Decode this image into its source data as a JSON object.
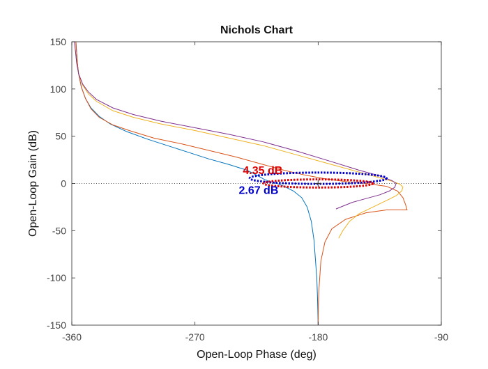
{
  "chart_data": {
    "type": "line",
    "title": "Nichols Chart",
    "xlabel": "Open-Loop Phase (deg)",
    "ylabel": "Open-Loop Gain (dB)",
    "xlim": [
      -360,
      -90
    ],
    "ylim": [
      -150,
      150
    ],
    "xticks": [
      -360,
      -270,
      -180,
      -90
    ],
    "yticks": [
      -150,
      -100,
      -50,
      0,
      50,
      100,
      150
    ],
    "grid": false,
    "zero_db_line": {
      "y": 0,
      "style": "dotted",
      "color": "#555555"
    },
    "critical_point": {
      "x": -180,
      "y": 0,
      "marker": "+"
    },
    "series": [
      {
        "color": "#0072BD",
        "points": [
          [
            -357,
            150
          ],
          [
            -356,
            128
          ],
          [
            -355,
            116
          ],
          [
            -353,
            102
          ],
          [
            -350,
            90
          ],
          [
            -346,
            80
          ],
          [
            -340,
            71
          ],
          [
            -332,
            63
          ],
          [
            -320,
            55
          ],
          [
            -305,
            47
          ],
          [
            -290,
            40
          ],
          [
            -275,
            33
          ],
          [
            -260,
            26
          ],
          [
            -245,
            20
          ],
          [
            -232,
            14
          ],
          [
            -224,
            8
          ],
          [
            -219,
            4
          ],
          [
            -215,
            2
          ],
          [
            -210,
            0
          ],
          [
            -205,
            -3
          ],
          [
            -198,
            -8
          ],
          [
            -192,
            -15
          ],
          [
            -188,
            -25
          ],
          [
            -185,
            -40
          ],
          [
            -183,
            -60
          ],
          [
            -182,
            -80
          ],
          [
            -181,
            -100
          ],
          [
            -180.5,
            -120
          ],
          [
            -180.2,
            -135
          ],
          [
            -180,
            -150
          ]
        ]
      },
      {
        "color": "#D95319",
        "points": [
          [
            -357,
            150
          ],
          [
            -356,
            128
          ],
          [
            -355,
            116
          ],
          [
            -353,
            102
          ],
          [
            -350,
            90
          ],
          [
            -346,
            79
          ],
          [
            -340,
            70
          ],
          [
            -330,
            62
          ],
          [
            -318,
            56
          ],
          [
            -300,
            48
          ],
          [
            -280,
            42
          ],
          [
            -260,
            35
          ],
          [
            -240,
            28
          ],
          [
            -220,
            20
          ],
          [
            -205,
            14
          ],
          [
            -190,
            9
          ],
          [
            -175,
            5
          ],
          [
            -160,
            2
          ],
          [
            -145,
            0
          ],
          [
            -130,
            -3
          ],
          [
            -122,
            -8
          ],
          [
            -118,
            -15
          ],
          [
            -116,
            -23
          ],
          [
            -115,
            -28
          ],
          [
            -120,
            -28
          ],
          [
            -130,
            -28
          ],
          [
            -145,
            -31
          ],
          [
            -160,
            -38
          ],
          [
            -170,
            -48
          ],
          [
            -175,
            -62
          ],
          [
            -178,
            -82
          ],
          [
            -179.3,
            -110
          ],
          [
            -179.8,
            -130
          ],
          [
            -180,
            -150
          ]
        ]
      },
      {
        "color": "#EDB120",
        "points": [
          [
            -358,
            150
          ],
          [
            -356.5,
            128
          ],
          [
            -355,
            116
          ],
          [
            -352,
            104
          ],
          [
            -348,
            95
          ],
          [
            -342,
            87
          ],
          [
            -330,
            77
          ],
          [
            -315,
            70
          ],
          [
            -295,
            63
          ],
          [
            -270,
            56
          ],
          [
            -245,
            48
          ],
          [
            -220,
            40
          ],
          [
            -195,
            30
          ],
          [
            -170,
            20
          ],
          [
            -150,
            12
          ],
          [
            -135,
            6
          ],
          [
            -125,
            2
          ],
          [
            -120,
            -1
          ],
          [
            -118,
            -4
          ],
          [
            -119,
            -8
          ],
          [
            -123,
            -13
          ],
          [
            -130,
            -18
          ],
          [
            -140,
            -25
          ],
          [
            -150,
            -32
          ],
          [
            -157,
            -40
          ],
          [
            -162,
            -50
          ],
          [
            -165,
            -58
          ]
        ]
      },
      {
        "color": "#7E2F8E",
        "points": [
          [
            -358,
            150
          ],
          [
            -356.5,
            128
          ],
          [
            -355,
            116
          ],
          [
            -352,
            105
          ],
          [
            -348,
            97
          ],
          [
            -342,
            89
          ],
          [
            -330,
            80
          ],
          [
            -315,
            73
          ],
          [
            -295,
            66
          ],
          [
            -270,
            59
          ],
          [
            -245,
            52
          ],
          [
            -220,
            44
          ],
          [
            -195,
            34
          ],
          [
            -170,
            23
          ],
          [
            -150,
            14
          ],
          [
            -135,
            8
          ],
          [
            -126,
            3
          ],
          [
            -123,
            0
          ],
          [
            -124,
            -4
          ],
          [
            -128,
            -8
          ],
          [
            -135,
            -12
          ],
          [
            -145,
            -16
          ],
          [
            -155,
            -20
          ],
          [
            -162,
            -24
          ],
          [
            -167,
            -27
          ]
        ]
      }
    ],
    "margin_ellipses": [
      {
        "color": "#0000CC",
        "center": [
          -180,
          5.5
        ],
        "x_radius": 50,
        "y_radius": 6
      },
      {
        "color": "#DD0000",
        "center": [
          -180,
          0
        ],
        "x_radius": 40,
        "y_radius": 4.3
      }
    ],
    "annotations": [
      {
        "text": "4.35 dB",
        "color": "#DD0000",
        "x": -235,
        "y": 10
      },
      {
        "text": "2.67 dB",
        "color": "#0000CC",
        "x": -238,
        "y": -11
      }
    ]
  }
}
